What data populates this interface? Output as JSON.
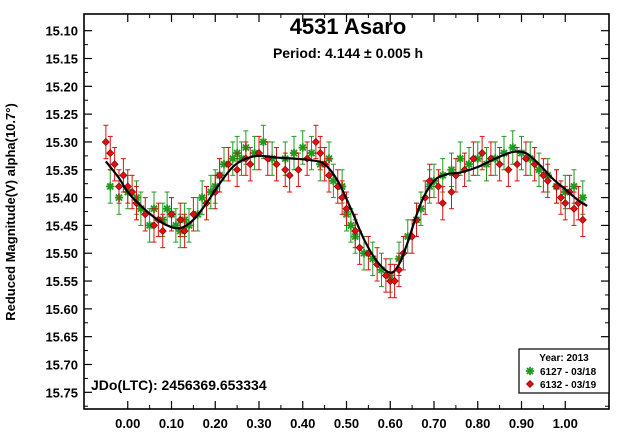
{
  "chart_data": {
    "type": "scatter",
    "title": "4531 Asaro",
    "subtitle": "Period: 4.144 ± 0.005 h",
    "ylabel": "Reduced Magnitude(V) alpha(10.7°)",
    "xlabel": "",
    "annotation": "JDo(LTC): 2456369.653334",
    "xlim": [
      -0.1,
      1.1
    ],
    "ylim": [
      15.78,
      15.07
    ],
    "y_inverted": true,
    "grid": false,
    "legend_position": "bottom-right",
    "x_ticks": [
      "0.00",
      "0.10",
      "0.20",
      "0.30",
      "0.40",
      "0.50",
      "0.60",
      "0.70",
      "0.80",
      "0.90",
      "1.00"
    ],
    "y_ticks": [
      "15.10",
      "15.15",
      "15.20",
      "15.25",
      "15.30",
      "15.35",
      "15.40",
      "15.45",
      "15.50",
      "15.55",
      "15.60",
      "15.65",
      "15.70",
      "15.75"
    ],
    "legend": {
      "title": "Year: 2013"
    },
    "series": [
      {
        "name": "6127 - 03/18",
        "marker": "asterisk",
        "color": "#1f9a1f",
        "error": 0.03,
        "points": [
          [
            -0.04,
            15.38
          ],
          [
            -0.02,
            15.4
          ],
          [
            0.0,
            15.39
          ],
          [
            0.02,
            15.4
          ],
          [
            0.03,
            15.42
          ],
          [
            0.05,
            15.45
          ],
          [
            0.06,
            15.42
          ],
          [
            0.08,
            15.44
          ],
          [
            0.09,
            15.42
          ],
          [
            0.1,
            15.43
          ],
          [
            0.11,
            15.45
          ],
          [
            0.12,
            15.46
          ],
          [
            0.13,
            15.44
          ],
          [
            0.14,
            15.45
          ],
          [
            0.16,
            15.43
          ],
          [
            0.17,
            15.4
          ],
          [
            0.19,
            15.39
          ],
          [
            0.2,
            15.38
          ],
          [
            0.21,
            15.36
          ],
          [
            0.22,
            15.34
          ],
          [
            0.24,
            15.33
          ],
          [
            0.25,
            15.32
          ],
          [
            0.26,
            15.33
          ],
          [
            0.27,
            15.31
          ],
          [
            0.29,
            15.32
          ],
          [
            0.31,
            15.3
          ],
          [
            0.33,
            15.33
          ],
          [
            0.36,
            15.33
          ],
          [
            0.38,
            15.32
          ],
          [
            0.4,
            15.31
          ],
          [
            0.42,
            15.32
          ],
          [
            0.44,
            15.34
          ],
          [
            0.46,
            15.33
          ],
          [
            0.47,
            15.37
          ],
          [
            0.49,
            15.38
          ],
          [
            0.5,
            15.43
          ],
          [
            0.51,
            15.45
          ],
          [
            0.52,
            15.47
          ],
          [
            0.54,
            15.5
          ],
          [
            0.56,
            15.51
          ],
          [
            0.58,
            15.53
          ],
          [
            0.6,
            15.54
          ],
          [
            0.62,
            15.51
          ],
          [
            0.64,
            15.47
          ],
          [
            0.66,
            15.44
          ],
          [
            0.67,
            15.42
          ],
          [
            0.69,
            15.38
          ],
          [
            0.7,
            15.37
          ],
          [
            0.72,
            15.36
          ],
          [
            0.74,
            15.35
          ],
          [
            0.76,
            15.33
          ],
          [
            0.78,
            15.34
          ],
          [
            0.8,
            15.33
          ],
          [
            0.82,
            15.34
          ],
          [
            0.84,
            15.33
          ],
          [
            0.86,
            15.32
          ],
          [
            0.88,
            15.31
          ],
          [
            0.9,
            15.32
          ],
          [
            0.92,
            15.33
          ],
          [
            0.94,
            15.35
          ],
          [
            0.96,
            15.36
          ],
          [
            0.98,
            15.38
          ],
          [
            1.0,
            15.39
          ],
          [
            1.02,
            15.38
          ],
          [
            1.04,
            15.4
          ]
        ]
      },
      {
        "name": "6132 - 03/19",
        "marker": "diamond",
        "color": "#dd1111",
        "error": 0.03,
        "points": [
          [
            -0.05,
            15.3
          ],
          [
            -0.04,
            15.32
          ],
          [
            -0.03,
            15.34
          ],
          [
            -0.02,
            15.38
          ],
          [
            -0.01,
            15.36
          ],
          [
            0.0,
            15.38
          ],
          [
            0.01,
            15.39
          ],
          [
            0.02,
            15.41
          ],
          [
            0.04,
            15.43
          ],
          [
            0.06,
            15.45
          ],
          [
            0.07,
            15.44
          ],
          [
            0.08,
            15.46
          ],
          [
            0.1,
            15.43
          ],
          [
            0.12,
            15.44
          ],
          [
            0.13,
            15.46
          ],
          [
            0.15,
            15.43
          ],
          [
            0.18,
            15.41
          ],
          [
            0.2,
            15.39
          ],
          [
            0.21,
            15.36
          ],
          [
            0.23,
            15.34
          ],
          [
            0.25,
            15.35
          ],
          [
            0.27,
            15.33
          ],
          [
            0.28,
            15.34
          ],
          [
            0.3,
            15.32
          ],
          [
            0.32,
            15.33
          ],
          [
            0.34,
            15.34
          ],
          [
            0.36,
            15.35
          ],
          [
            0.37,
            15.36
          ],
          [
            0.39,
            15.35
          ],
          [
            0.41,
            15.33
          ],
          [
            0.43,
            15.3
          ],
          [
            0.44,
            15.32
          ],
          [
            0.45,
            15.34
          ],
          [
            0.46,
            15.36
          ],
          [
            0.48,
            15.38
          ],
          [
            0.49,
            15.4
          ],
          [
            0.5,
            15.42
          ],
          [
            0.52,
            15.46
          ],
          [
            0.53,
            15.49
          ],
          [
            0.55,
            15.5
          ],
          [
            0.57,
            15.52
          ],
          [
            0.59,
            15.54
          ],
          [
            0.6,
            15.55
          ],
          [
            0.61,
            15.55
          ],
          [
            0.62,
            15.53
          ],
          [
            0.63,
            15.5
          ],
          [
            0.65,
            15.47
          ],
          [
            0.66,
            15.44
          ],
          [
            0.68,
            15.4
          ],
          [
            0.69,
            15.37
          ],
          [
            0.71,
            15.38
          ],
          [
            0.72,
            15.41
          ],
          [
            0.74,
            15.39
          ],
          [
            0.75,
            15.36
          ],
          [
            0.77,
            15.35
          ],
          [
            0.79,
            15.33
          ],
          [
            0.81,
            15.32
          ],
          [
            0.83,
            15.33
          ],
          [
            0.85,
            15.34
          ],
          [
            0.87,
            15.35
          ],
          [
            0.89,
            15.34
          ],
          [
            0.91,
            15.33
          ],
          [
            0.93,
            15.34
          ],
          [
            0.95,
            15.36
          ],
          [
            0.96,
            15.37
          ],
          [
            0.98,
            15.38
          ],
          [
            0.99,
            15.4
          ],
          [
            1.0,
            15.41
          ],
          [
            1.01,
            15.39
          ],
          [
            1.02,
            15.42
          ],
          [
            1.03,
            15.41
          ],
          [
            1.04,
            15.44
          ]
        ]
      }
    ],
    "fit_curve": {
      "color": "#000000",
      "points": [
        [
          -0.05,
          15.335
        ],
        [
          -0.02,
          15.365
        ],
        [
          0.0,
          15.39
        ],
        [
          0.03,
          15.415
        ],
        [
          0.06,
          15.435
        ],
        [
          0.09,
          15.45
        ],
        [
          0.12,
          15.455
        ],
        [
          0.15,
          15.44
        ],
        [
          0.18,
          15.41
        ],
        [
          0.21,
          15.375
        ],
        [
          0.24,
          15.345
        ],
        [
          0.27,
          15.33
        ],
        [
          0.3,
          15.325
        ],
        [
          0.34,
          15.328
        ],
        [
          0.38,
          15.33
        ],
        [
          0.42,
          15.333
        ],
        [
          0.45,
          15.34
        ],
        [
          0.48,
          15.37
        ],
        [
          0.51,
          15.42
        ],
        [
          0.54,
          15.475
        ],
        [
          0.57,
          15.515
        ],
        [
          0.6,
          15.535
        ],
        [
          0.62,
          15.52
        ],
        [
          0.64,
          15.48
        ],
        [
          0.67,
          15.41
        ],
        [
          0.7,
          15.37
        ],
        [
          0.73,
          15.358
        ],
        [
          0.76,
          15.355
        ],
        [
          0.8,
          15.345
        ],
        [
          0.84,
          15.33
        ],
        [
          0.88,
          15.318
        ],
        [
          0.91,
          15.32
        ],
        [
          0.94,
          15.34
        ],
        [
          0.97,
          15.365
        ],
        [
          1.0,
          15.385
        ],
        [
          1.03,
          15.405
        ],
        [
          1.05,
          15.415
        ]
      ]
    }
  }
}
